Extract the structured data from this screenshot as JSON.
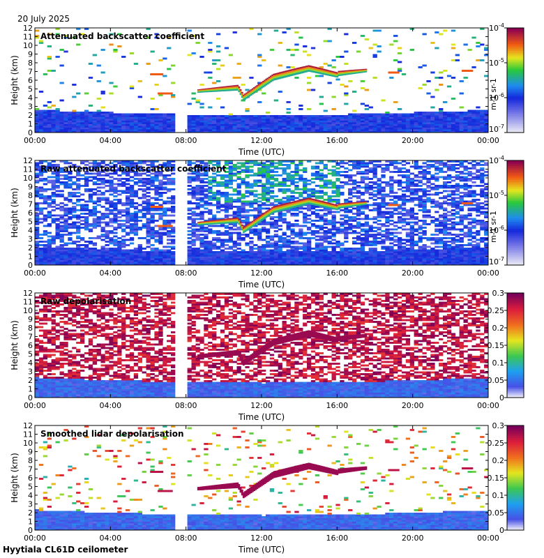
{
  "header": {
    "date": "20 July 2025"
  },
  "footer": {
    "site": "Hyytiala CL61D ceilometer"
  },
  "chart_data": [
    {
      "type": "heatmap",
      "title": "Attenuated backscatter coefficient",
      "xlabel": "Time (UTC)",
      "ylabel": "Height (km)",
      "x_ticks": [
        "00:00",
        "04:00",
        "08:00",
        "12:00",
        "16:00",
        "20:00",
        "00:00"
      ],
      "y_ticks": [
        "0",
        "1",
        "2",
        "3",
        "4",
        "5",
        "6",
        "7",
        "8",
        "9",
        "10",
        "11",
        "12"
      ],
      "xlim_hours": [
        0,
        24
      ],
      "ylim_km": [
        0,
        12
      ],
      "data_gap_hours": [
        7.5,
        8.0
      ],
      "colorbar": {
        "scale": "log",
        "ticks": [
          "10-7",
          "10-6",
          "10-5",
          "10-4"
        ],
        "label": "m-1 sr-1"
      },
      "features": {
        "boundary_layer_top_km": 2.5,
        "cloud_layer_km": [
          4.5,
          7.5
        ],
        "cloud_hours": [
          8.5,
          17.5
        ]
      }
    },
    {
      "type": "heatmap",
      "title": "Raw attenuated backscatter coefficient",
      "xlabel": "Time (UTC)",
      "ylabel": "Height (km)",
      "x_ticks": [
        "00:00",
        "04:00",
        "08:00",
        "12:00",
        "16:00",
        "20:00",
        "00:00"
      ],
      "y_ticks": [
        "0",
        "1",
        "2",
        "3",
        "4",
        "5",
        "6",
        "7",
        "8",
        "9",
        "10",
        "11",
        "12"
      ],
      "xlim_hours": [
        0,
        24
      ],
      "ylim_km": [
        0,
        12
      ],
      "data_gap_hours": [
        7.5,
        8.0
      ],
      "colorbar": {
        "scale": "log",
        "ticks": [
          "10-7",
          "10-6",
          "10-5",
          "10-4"
        ],
        "label": "m-1 sr-1"
      },
      "features": {
        "boundary_layer_top_km": 2.0,
        "cloud_layer_km": [
          4.5,
          7.0
        ],
        "cloud_hours": [
          8.5,
          17.5
        ]
      }
    },
    {
      "type": "heatmap",
      "title": "Raw depolarisation",
      "xlabel": "Time (UTC)",
      "ylabel": "Height (km)",
      "x_ticks": [
        "00:00",
        "04:00",
        "08:00",
        "12:00",
        "16:00",
        "20:00",
        "00:00"
      ],
      "y_ticks": [
        "0",
        "1",
        "2",
        "3",
        "4",
        "5",
        "6",
        "7",
        "8",
        "9",
        "10",
        "11",
        "12"
      ],
      "xlim_hours": [
        0,
        24
      ],
      "ylim_km": [
        0,
        12
      ],
      "data_gap_hours": [
        7.5,
        8.0
      ],
      "colorbar": {
        "scale": "linear",
        "ticks": [
          "0",
          "0.05",
          "0.1",
          "0.15",
          "0.2",
          "0.25",
          "0.3"
        ]
      }
    },
    {
      "type": "heatmap",
      "title": "Smoothed lidar depolarisation",
      "xlabel": "Time (UTC)",
      "ylabel": "Height (km)",
      "x_ticks": [
        "00:00",
        "04:00",
        "08:00",
        "12:00",
        "16:00",
        "20:00",
        "00:00"
      ],
      "y_ticks": [
        "0",
        "1",
        "2",
        "3",
        "4",
        "5",
        "6",
        "7",
        "8",
        "9",
        "10",
        "11",
        "12"
      ],
      "xlim_hours": [
        0,
        24
      ],
      "ylim_km": [
        0,
        12
      ],
      "data_gap_hours": [
        7.5,
        8.0
      ],
      "colorbar": {
        "scale": "linear",
        "ticks": [
          "0",
          "0.05",
          "0.1",
          "0.15",
          "0.2",
          "0.25",
          "0.3"
        ]
      }
    }
  ]
}
